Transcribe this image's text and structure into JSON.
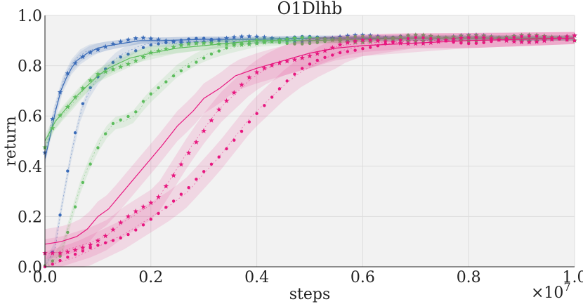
{
  "chart_data": {
    "type": "line",
    "title": "O1Dlhb",
    "xlabel": "steps",
    "ylabel": "return",
    "x_multiplier_label": "×10",
    "x_multiplier_exp": "7",
    "xlim": [
      0,
      1.0
    ],
    "ylim": [
      0,
      1.0
    ],
    "xticks": [
      "0.0",
      "0.2",
      "0.4",
      "0.6",
      "0.8",
      "1.0"
    ],
    "yticks": [
      "0.0",
      "0.2",
      "0.4",
      "0.6",
      "0.8",
      "1.0"
    ],
    "grid": true,
    "series": [
      {
        "name": "blue-line",
        "color": "#3a6bb8",
        "marker": "none",
        "x": [
          0.0,
          0.01,
          0.02,
          0.03,
          0.04,
          0.05,
          0.06,
          0.08,
          0.1,
          0.12,
          0.15,
          0.18,
          0.22,
          0.3,
          0.4,
          0.5,
          0.6,
          0.7,
          0.8,
          0.9,
          1.0
        ],
        "y": [
          0.43,
          0.52,
          0.62,
          0.7,
          0.75,
          0.79,
          0.82,
          0.85,
          0.87,
          0.88,
          0.89,
          0.9,
          0.9,
          0.905,
          0.905,
          0.91,
          0.91,
          0.91,
          0.91,
          0.91,
          0.91
        ]
      },
      {
        "name": "blue-star",
        "color": "#3a6bb8",
        "marker": "star",
        "x": [
          0.0,
          0.01,
          0.02,
          0.03,
          0.04,
          0.05,
          0.06,
          0.08,
          0.1,
          0.12,
          0.15,
          0.18,
          0.22,
          0.3,
          0.4,
          0.5,
          0.6,
          0.7,
          0.8,
          0.9,
          1.0
        ],
        "y": [
          0.45,
          0.55,
          0.64,
          0.71,
          0.77,
          0.8,
          0.83,
          0.86,
          0.87,
          0.88,
          0.89,
          0.9,
          0.9,
          0.905,
          0.905,
          0.91,
          0.91,
          0.91,
          0.91,
          0.91,
          0.91
        ]
      },
      {
        "name": "blue-dot",
        "color": "#3a6bb8",
        "marker": "dot",
        "x": [
          0.0,
          0.02,
          0.03,
          0.04,
          0.05,
          0.06,
          0.07,
          0.08,
          0.09,
          0.1,
          0.12,
          0.14,
          0.16,
          0.18,
          0.2,
          0.25,
          0.3,
          0.4,
          0.5,
          0.6,
          0.7,
          0.8,
          0.9,
          1.0
        ],
        "y": [
          0.0,
          0.08,
          0.22,
          0.34,
          0.45,
          0.55,
          0.63,
          0.68,
          0.72,
          0.75,
          0.8,
          0.84,
          0.86,
          0.88,
          0.89,
          0.89,
          0.9,
          0.9,
          0.905,
          0.91,
          0.91,
          0.91,
          0.91,
          0.91
        ]
      },
      {
        "name": "green-line",
        "color": "#5dbd5d",
        "marker": "none",
        "x": [
          0.0,
          0.02,
          0.04,
          0.06,
          0.08,
          0.1,
          0.12,
          0.14,
          0.16,
          0.18,
          0.2,
          0.25,
          0.3,
          0.35,
          0.4,
          0.5,
          0.6,
          0.7,
          0.8,
          0.9,
          1.0
        ],
        "y": [
          0.5,
          0.58,
          0.63,
          0.68,
          0.72,
          0.76,
          0.79,
          0.81,
          0.83,
          0.84,
          0.85,
          0.87,
          0.88,
          0.89,
          0.9,
          0.9,
          0.905,
          0.91,
          0.91,
          0.91,
          0.91
        ]
      },
      {
        "name": "green-star",
        "color": "#5dbd5d",
        "marker": "star",
        "x": [
          0.0,
          0.02,
          0.04,
          0.06,
          0.08,
          0.1,
          0.12,
          0.14,
          0.16,
          0.18,
          0.2,
          0.25,
          0.3,
          0.35,
          0.4,
          0.5,
          0.6,
          0.7,
          0.8,
          0.9,
          1.0
        ],
        "y": [
          0.48,
          0.58,
          0.62,
          0.67,
          0.72,
          0.76,
          0.78,
          0.8,
          0.82,
          0.84,
          0.86,
          0.87,
          0.88,
          0.89,
          0.9,
          0.9,
          0.905,
          0.91,
          0.91,
          0.91,
          0.91
        ]
      },
      {
        "name": "green-dot",
        "color": "#5dbd5d",
        "marker": "dot",
        "x": [
          0.0,
          0.03,
          0.05,
          0.07,
          0.09,
          0.11,
          0.13,
          0.15,
          0.17,
          0.19,
          0.21,
          0.23,
          0.25,
          0.28,
          0.31,
          0.35,
          0.4,
          0.5,
          0.6,
          0.7,
          0.8,
          0.9,
          1.0
        ],
        "y": [
          0.0,
          0.05,
          0.2,
          0.34,
          0.44,
          0.52,
          0.57,
          0.58,
          0.6,
          0.66,
          0.7,
          0.74,
          0.78,
          0.82,
          0.85,
          0.87,
          0.89,
          0.9,
          0.905,
          0.91,
          0.91,
          0.91,
          0.91
        ]
      },
      {
        "name": "pink-line",
        "color": "#e8167f",
        "marker": "none",
        "x": [
          0.0,
          0.03,
          0.06,
          0.08,
          0.1,
          0.12,
          0.14,
          0.16,
          0.18,
          0.2,
          0.22,
          0.25,
          0.28,
          0.3,
          0.33,
          0.36,
          0.4,
          0.45,
          0.5,
          0.55,
          0.6,
          0.7,
          0.8,
          0.9,
          1.0
        ],
        "y": [
          0.09,
          0.1,
          0.12,
          0.15,
          0.2,
          0.23,
          0.28,
          0.33,
          0.38,
          0.43,
          0.48,
          0.56,
          0.62,
          0.67,
          0.71,
          0.76,
          0.79,
          0.82,
          0.85,
          0.87,
          0.88,
          0.89,
          0.9,
          0.905,
          0.91
        ]
      },
      {
        "name": "pink-star",
        "color": "#e8167f",
        "marker": "star",
        "x": [
          0.0,
          0.03,
          0.06,
          0.09,
          0.12,
          0.15,
          0.18,
          0.21,
          0.24,
          0.27,
          0.3,
          0.33,
          0.36,
          0.39,
          0.42,
          0.45,
          0.48,
          0.52,
          0.56,
          0.6,
          0.7,
          0.8,
          0.9,
          1.0
        ],
        "y": [
          0.05,
          0.06,
          0.08,
          0.1,
          0.13,
          0.18,
          0.22,
          0.26,
          0.36,
          0.46,
          0.55,
          0.63,
          0.69,
          0.75,
          0.79,
          0.82,
          0.84,
          0.86,
          0.88,
          0.89,
          0.9,
          0.9,
          0.905,
          0.91
        ]
      },
      {
        "name": "pink-dot",
        "color": "#e8167f",
        "marker": "dot",
        "x": [
          0.0,
          0.03,
          0.06,
          0.09,
          0.12,
          0.15,
          0.18,
          0.21,
          0.24,
          0.27,
          0.3,
          0.33,
          0.36,
          0.39,
          0.42,
          0.45,
          0.48,
          0.52,
          0.56,
          0.6,
          0.65,
          0.7,
          0.8,
          0.9,
          1.0
        ],
        "y": [
          0.0,
          0.02,
          0.04,
          0.07,
          0.1,
          0.13,
          0.17,
          0.21,
          0.25,
          0.3,
          0.37,
          0.44,
          0.52,
          0.6,
          0.66,
          0.72,
          0.77,
          0.82,
          0.86,
          0.88,
          0.89,
          0.9,
          0.9,
          0.905,
          0.91
        ]
      }
    ]
  }
}
